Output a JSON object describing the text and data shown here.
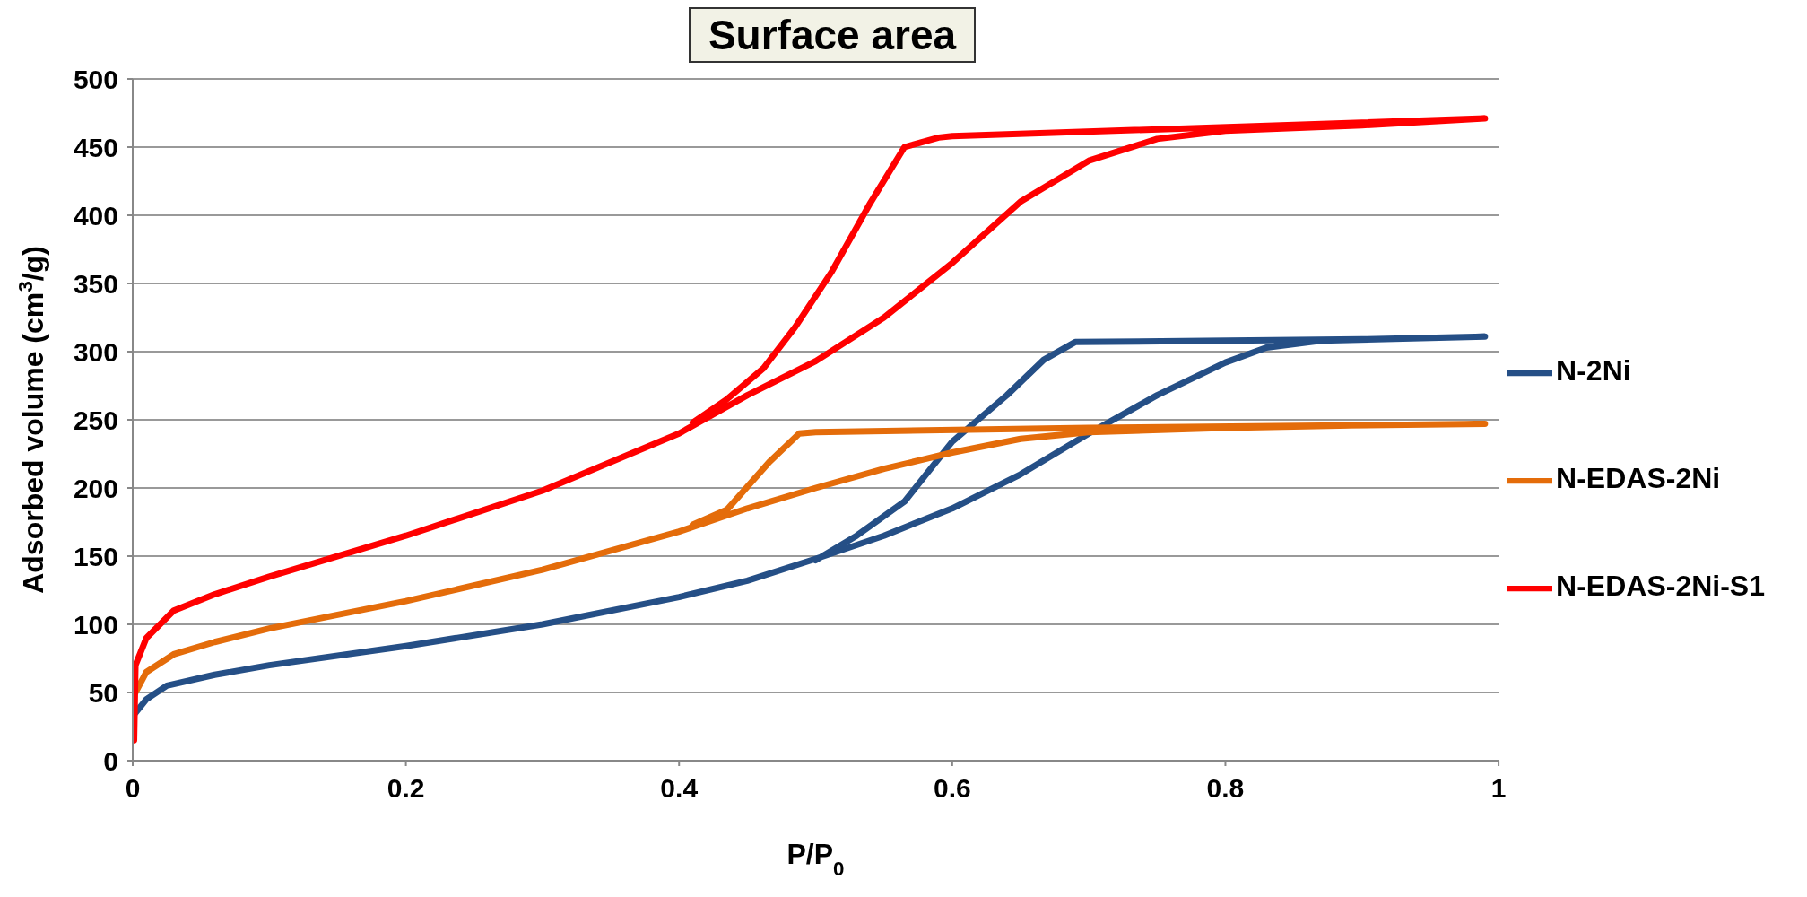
{
  "chart_data": {
    "type": "line",
    "title": "Surface area",
    "xlabel": "P/P$_{0}$",
    "ylabel": "Adsorbed volume (cm$^{3}$/g)",
    "xlim": [
      0,
      1
    ],
    "xticks": [
      0,
      0.2,
      0.4,
      0.6,
      0.8,
      1
    ],
    "ylim": [
      0,
      500
    ],
    "yticks": [
      0,
      50,
      100,
      150,
      200,
      250,
      300,
      350,
      400,
      450,
      500
    ],
    "grid": "y",
    "legend": "right",
    "marker": "none",
    "line_style": "solid",
    "series": [
      {
        "name": "N-2Ni",
        "color": "#254f86",
        "x": [
          0.002,
          0.01,
          0.025,
          0.06,
          0.1,
          0.2,
          0.3,
          0.4,
          0.45,
          0.5,
          0.55,
          0.6,
          0.65,
          0.7,
          0.75,
          0.8,
          0.83,
          0.87,
          0.95,
          0.99,
          0.9,
          0.69,
          0.667,
          0.64,
          0.6,
          0.565,
          0.53,
          0.5
        ],
        "values": [
          35,
          45,
          55,
          63,
          70,
          84,
          100,
          120,
          132,
          148,
          165,
          185,
          210,
          240,
          268,
          292,
          303,
          308,
          310,
          311,
          309,
          307,
          294,
          268,
          234,
          190,
          165,
          147
        ]
      },
      {
        "name": "N-EDAS-2Ni",
        "color": "#e46c0a",
        "x": [
          0.002,
          0.01,
          0.03,
          0.06,
          0.1,
          0.2,
          0.3,
          0.4,
          0.45,
          0.5,
          0.55,
          0.6,
          0.65,
          0.7,
          0.8,
          0.9,
          0.99,
          0.7,
          0.5,
          0.488,
          0.466,
          0.435,
          0.41
        ],
        "values": [
          50,
          65,
          78,
          87,
          97,
          117,
          140,
          168,
          185,
          200,
          214,
          226,
          236,
          241,
          244,
          246,
          247,
          244,
          241,
          240,
          219,
          184,
          173
        ]
      },
      {
        "name": "N-EDAS-2Ni-S1",
        "color": "#ff0000",
        "x": [
          0.001,
          0.002,
          0.01,
          0.03,
          0.06,
          0.1,
          0.2,
          0.3,
          0.4,
          0.45,
          0.5,
          0.55,
          0.6,
          0.65,
          0.7,
          0.75,
          0.8,
          0.9,
          0.99,
          0.6,
          0.59,
          0.565,
          0.54,
          0.512,
          0.485,
          0.462,
          0.435,
          0.41
        ],
        "values": [
          15,
          70,
          90,
          110,
          122,
          135,
          165,
          198,
          240,
          268,
          293,
          325,
          365,
          410,
          440,
          456,
          462,
          466,
          471,
          458,
          457,
          450,
          409,
          359,
          318,
          288,
          265,
          248
        ]
      }
    ]
  }
}
